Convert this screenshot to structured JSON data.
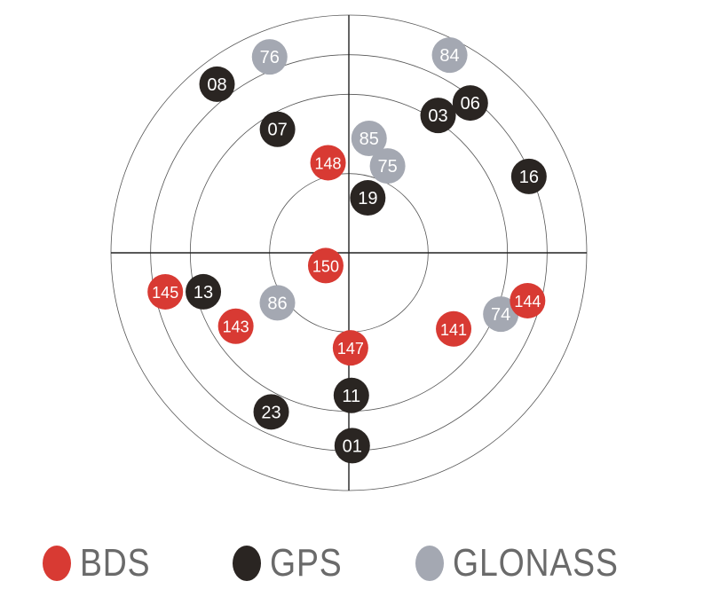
{
  "chart_data": {
    "type": "scatter",
    "subtype": "polar sky plot",
    "radial_axis": "elevation (deg), 90 at center, 0 at outer ring",
    "angular_axis": "azimuth (deg), clockwise from top",
    "rings_elevation": [
      0,
      15,
      30,
      60
    ],
    "grid": true,
    "legend_placement": "bottom",
    "series": [
      {
        "name": "BDS",
        "color": "#d83a33",
        "points": [
          {
            "id": "148",
            "az": 347,
            "el": 55
          },
          {
            "id": "150",
            "az": 241,
            "el": 80
          },
          {
            "id": "145",
            "az": 258,
            "el": 19
          },
          {
            "id": "143",
            "az": 237,
            "el": 39
          },
          {
            "id": "147",
            "az": 179,
            "el": 54
          },
          {
            "id": "141",
            "az": 126,
            "el": 41
          }
        ]
      },
      {
        "name": "GPS",
        "color": "#2a2522",
        "points": [
          {
            "id": "08",
            "az": 322,
            "el": 9
          },
          {
            "id": "03",
            "az": 33,
            "el": 28
          },
          {
            "id": "06",
            "az": 39,
            "el": 17
          },
          {
            "id": "07",
            "az": 330,
            "el": 36
          },
          {
            "id": "19",
            "az": 19,
            "el": 68
          },
          {
            "id": "16",
            "az": 67,
            "el": 16
          },
          {
            "id": "13",
            "az": 255,
            "el": 33
          },
          {
            "id": "11",
            "az": 179,
            "el": 36
          },
          {
            "id": "23",
            "az": 206,
            "el": 23
          },
          {
            "id": "01",
            "az": 179,
            "el": 17
          }
        ]
      },
      {
        "name": "GLONASS",
        "color": "#a4a8b2",
        "points": [
          {
            "id": "76",
            "az": 338,
            "el": 10
          },
          {
            "id": "84",
            "az": 27,
            "el": 6
          },
          {
            "id": "85",
            "az": 10,
            "el": 46
          },
          {
            "id": "75",
            "az": 24,
            "el": 54
          },
          {
            "id": "86",
            "az": 235,
            "el": 57
          },
          {
            "id": "74",
            "az": 112,
            "el": 28
          }
        ]
      }
    ],
    "draw_order": [
      "76",
      "08",
      "84",
      "03",
      "06",
      "07",
      "85",
      "75",
      "148",
      "19",
      "16",
      "150",
      "145",
      "13",
      "86",
      "143",
      "147",
      "141",
      "74",
      "144",
      "11",
      "23",
      "01"
    ],
    "extra_points": [
      {
        "id": "144",
        "series": "BDS",
        "az": 105,
        "el": 20
      }
    ]
  },
  "legend": [
    {
      "label": "BDS",
      "color": "#d83a33"
    },
    {
      "label": "GPS",
      "color": "#2a2522"
    },
    {
      "label": "GLONASS",
      "color": "#a4a8b2"
    }
  ]
}
